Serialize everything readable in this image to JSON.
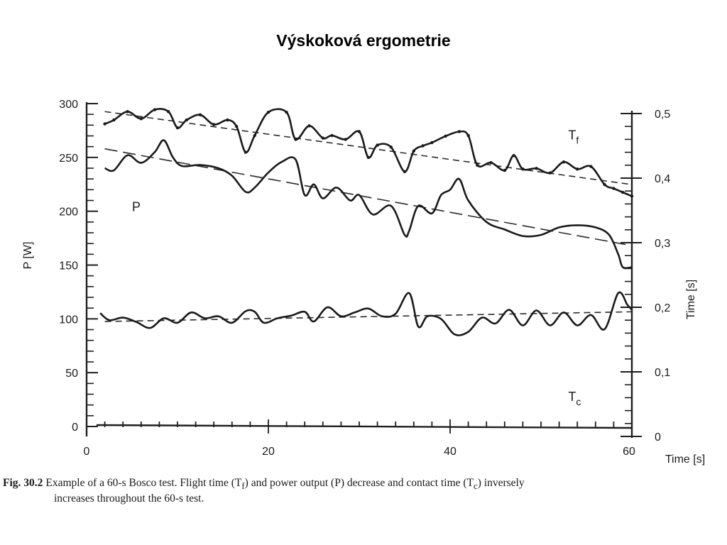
{
  "slide": {
    "title": "Výskoková ergometrie"
  },
  "caption": {
    "fig_label": "Fig. 30.2",
    "line1": "Example of a 60-s Bosco test. Flight time (T",
    "line1_sub_f": "f",
    "line1_mid": ") and power output (P) decrease and contact time (T",
    "line1_sub_c": "c",
    "line1_end": ") inversely",
    "line2": "increases throughout the 60-s test."
  },
  "chart_data": {
    "type": "line",
    "xlabel": "Time [s]",
    "ylabel_left": "P [W]",
    "ylabel_right": "Time [s]",
    "xlim": [
      0,
      60
    ],
    "ylim_left": [
      0,
      300
    ],
    "ylim_right": [
      0,
      0.5
    ],
    "x_ticks": [
      "0",
      "20",
      "40",
      "60"
    ],
    "y_left_ticks": [
      "0",
      "50",
      "100",
      "150",
      "200",
      "250",
      "300"
    ],
    "y_right_ticks": [
      "0",
      "0,1",
      "0,2",
      "0,3",
      "0,4",
      "0,5"
    ],
    "series": [
      {
        "name": "Tf",
        "axis": "right",
        "x": [
          2,
          3,
          4.5,
          6,
          7.5,
          9,
          10,
          11,
          12.5,
          14,
          15.5,
          16.5,
          17.5,
          18.5,
          20,
          22,
          23,
          24.5,
          26,
          27,
          28.5,
          30,
          31,
          32,
          33.5,
          35,
          36,
          37,
          38,
          39.5,
          41,
          42,
          43,
          44.5,
          46,
          47,
          48,
          49.5,
          51,
          52.5,
          54,
          55.5,
          57,
          58,
          59,
          60
        ],
        "y": [
          0.484,
          0.49,
          0.503,
          0.492,
          0.506,
          0.503,
          0.478,
          0.49,
          0.498,
          0.483,
          0.49,
          0.48,
          0.44,
          0.466,
          0.502,
          0.502,
          0.46,
          0.481,
          0.462,
          0.466,
          0.46,
          0.472,
          0.432,
          0.451,
          0.448,
          0.41,
          0.442,
          0.45,
          0.455,
          0.465,
          0.472,
          0.466,
          0.42,
          0.424,
          0.412,
          0.435,
          0.414,
          0.415,
          0.408,
          0.425,
          0.414,
          0.418,
          0.39,
          0.384,
          0.378,
          0.372
        ]
      },
      {
        "name": "P",
        "axis": "left",
        "x": [
          2,
          3,
          4.5,
          6,
          7.5,
          8.5,
          9.5,
          10.5,
          12.5,
          14.5,
          16,
          17.5,
          18.5,
          20,
          21.5,
          23,
          24,
          25,
          26,
          27.5,
          29,
          30,
          31.5,
          33.5,
          35,
          35.5,
          36.5,
          38,
          39,
          40,
          41,
          42,
          44,
          46,
          48,
          50,
          52,
          54,
          56,
          57.5,
          58.5,
          59,
          60
        ],
        "y": [
          240,
          238,
          252,
          245,
          255,
          266,
          250,
          242,
          243,
          240,
          233,
          218,
          222,
          236,
          246,
          248,
          215,
          225,
          212,
          222,
          210,
          215,
          197,
          205,
          178,
          182,
          205,
          198,
          215,
          220,
          230,
          210,
          190,
          183,
          177,
          178,
          185,
          187,
          185,
          178,
          160,
          148,
          148
        ]
      },
      {
        "name": "Tc",
        "axis": "right",
        "x": [
          1.5,
          2.5,
          4,
          5.5,
          7,
          8.5,
          10,
          11.5,
          13,
          14.5,
          16,
          17.5,
          18.5,
          19.5,
          21,
          22.5,
          24,
          25,
          26.5,
          28,
          29.5,
          31,
          32.5,
          34,
          35.5,
          36.5,
          37.5,
          39,
          40.5,
          42,
          43.5,
          45,
          46.5,
          48,
          49.5,
          51,
          52.5,
          54,
          55.5,
          57,
          58.5,
          59.5,
          60
        ],
        "y": [
          0.191,
          0.18,
          0.184,
          0.177,
          0.168,
          0.183,
          0.176,
          0.192,
          0.183,
          0.186,
          0.176,
          0.194,
          0.193,
          0.176,
          0.183,
          0.187,
          0.193,
          0.178,
          0.2,
          0.186,
          0.192,
          0.198,
          0.186,
          0.19,
          0.222,
          0.17,
          0.186,
          0.182,
          0.158,
          0.162,
          0.184,
          0.175,
          0.196,
          0.172,
          0.195,
          0.172,
          0.192,
          0.172,
          0.188,
          0.166,
          0.222,
          0.204,
          0.196
        ]
      }
    ],
    "trend_lines": [
      {
        "name": "Tf trend",
        "axis": "right",
        "x": [
          2,
          60
        ],
        "y": [
          0.503,
          0.39
        ]
      },
      {
        "name": "P trend",
        "axis": "left",
        "x": [
          2,
          60
        ],
        "y": [
          258,
          168
        ]
      },
      {
        "name": "Tc trend",
        "axis": "right",
        "x": [
          2,
          60
        ],
        "y": [
          0.178,
          0.193
        ]
      }
    ],
    "annotations": [
      {
        "text": "T",
        "sub": "f",
        "x": 53,
        "y": 0.46,
        "axis": "right"
      },
      {
        "text": "P",
        "x": 5,
        "y": 200,
        "axis": "left"
      },
      {
        "text": "T",
        "sub": "c",
        "x": 53,
        "y": 0.055,
        "axis": "right"
      }
    ],
    "grid": false
  }
}
